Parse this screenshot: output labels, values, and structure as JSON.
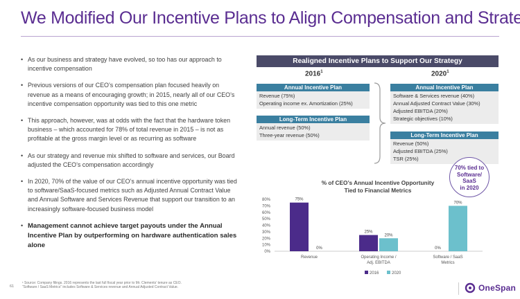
{
  "title": "We Modified Our Incentive Plans to Align Compensation and Strategy",
  "bullets": [
    {
      "text": "As our business and strategy have evolved, so too has our approach to incentive compensation",
      "bold": false
    },
    {
      "text": "Previous versions of our CEO’s compensation plan focused heavily on revenue as a means of encouraging growth; in 2015, nearly all of our CEO’s incentive compensation opportunity was tied to this one metric",
      "bold": false
    },
    {
      "text": "This approach, however, was at odds with the fact that the hardware token business – which accounted for 78% of total revenue in 2015 – is not as profitable at the gross margin level or as recurring as software",
      "bold": false
    },
    {
      "text": "As our strategy and revenue mix shifted to software and services, our Board adjusted the CEO’s compensation accordingly",
      "bold": false
    },
    {
      "text": "In 2020, 70% of the value of our CEO’s annual incentive opportunity was tied to software/SaaS-focused metrics such as Adjusted Annual Contract Value and Annual Software and Services Revenue that support our transition to an increasingly software-focused business model",
      "bold": false
    },
    {
      "text": "Management cannot achieve target payouts under the Annual Incentive Plan by outperforming on hardware authentication sales alone",
      "bold": true
    }
  ],
  "right_header": "Realigned Incentive Plans to Support Our Strategy",
  "years": {
    "y2016": "2016",
    "y2020": "2020",
    "footnote_mark": "1"
  },
  "plans_2016": {
    "annual": {
      "header": "Annual Incentive Plan",
      "items": [
        "Revenue (75%)",
        "Operating income ex. Amortization (25%)"
      ]
    },
    "ltip": {
      "header": "Long-Term Incentive Plan",
      "items": [
        "Annual revenue (50%)",
        "Three-year revenue (50%)"
      ]
    }
  },
  "plans_2020": {
    "annual": {
      "header": "Annual Incentive Plan",
      "items": [
        "Software & Services revenue (40%)",
        "Annual Adjusted Contract Value (30%)",
        "Adjusted EBITDA (20%)",
        "Strategic objectives (10%)"
      ]
    },
    "ltip": {
      "header": "Long-Term Incentive Plan",
      "items": [
        "Revenue (50%)",
        "Adjusted EBITDA (25%)",
        "TSR (25%)"
      ]
    }
  },
  "callout": [
    "70% tied to",
    "Software/",
    "SaaS",
    "in 2020"
  ],
  "chart_title": [
    "% of CEO’s Annual Incentive Opportunity",
    "Tied to Financial Metrics"
  ],
  "chart_data": {
    "type": "bar",
    "title": "% of CEO’s Annual Incentive Opportunity Tied to Financial Metrics",
    "categories": [
      [
        "Revenue"
      ],
      [
        "Operating Income /",
        "Adj. EBITDA"
      ],
      [
        "Software / SaaS",
        "Metrics"
      ]
    ],
    "series": [
      {
        "name": "2016",
        "values": [
          75,
          25,
          0
        ],
        "labels": [
          "75%",
          "25%",
          "0%"
        ],
        "color": "#4b2b8a"
      },
      {
        "name": "2020",
        "values": [
          0,
          20,
          70
        ],
        "labels": [
          "0%",
          "20%",
          "70%"
        ],
        "color": "#6cc0cc"
      }
    ],
    "ylim": [
      0,
      80
    ],
    "yticks": [
      "0%",
      "10%",
      "20%",
      "30%",
      "40%",
      "50%",
      "60%",
      "70%",
      "80%"
    ],
    "grid": false,
    "legend": "bottom"
  },
  "footnote": [
    "¹ Source: Company filings. 2016 represents the last full fiscal year prior to Mr. Clements’ tenure as CEO.",
    "“Software / SaaS Metrics” includes Software & Services revenue and Annual Adjusted Contract Value."
  ],
  "page_number": "61",
  "logo_text": "OneSpan",
  "colors": {
    "purple": "#5a2d91",
    "header_dark": "#4a4a68",
    "teal_header": "#3a7fa0",
    "bar2016": "#4b2b8a",
    "bar2020": "#6cc0cc"
  }
}
